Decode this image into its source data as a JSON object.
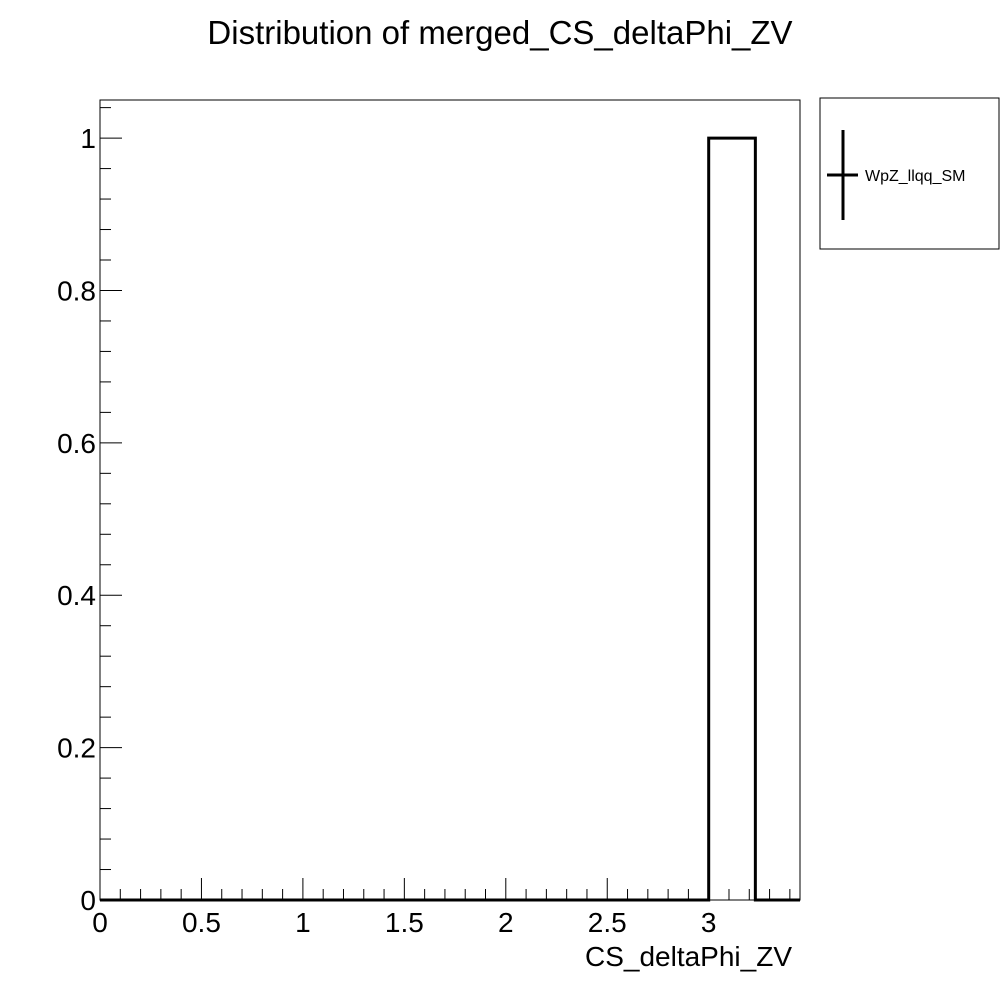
{
  "chart_data": {
    "type": "bar",
    "title": "Distribution of merged_CS_deltaPhi_ZV",
    "xlabel": "CS_deltaPhi_ZV",
    "ylabel": "",
    "xlim": [
      0,
      3.45
    ],
    "ylim": [
      0,
      1.05
    ],
    "x_ticks": [
      0,
      0.5,
      1,
      1.5,
      2,
      2.5,
      3
    ],
    "x_tick_labels": [
      "0",
      "0.5",
      "1",
      "1.5",
      "2",
      "2.5",
      "3"
    ],
    "y_ticks": [
      0,
      0.2,
      0.4,
      0.6,
      0.8,
      1
    ],
    "y_tick_labels": [
      "0",
      "0.2",
      "0.4",
      "0.6",
      "0.8",
      "1"
    ],
    "bin_width": 0.23,
    "series": [
      {
        "name": "WpZ_llqq_SM",
        "color": "#000000",
        "bins": [
          {
            "x_low": 3.0,
            "x_high": 3.23,
            "value": 1.0
          }
        ]
      }
    ],
    "legend": {
      "placement": "right-top",
      "entries": [
        "WpZ_llqq_SM"
      ]
    },
    "grid": false
  }
}
